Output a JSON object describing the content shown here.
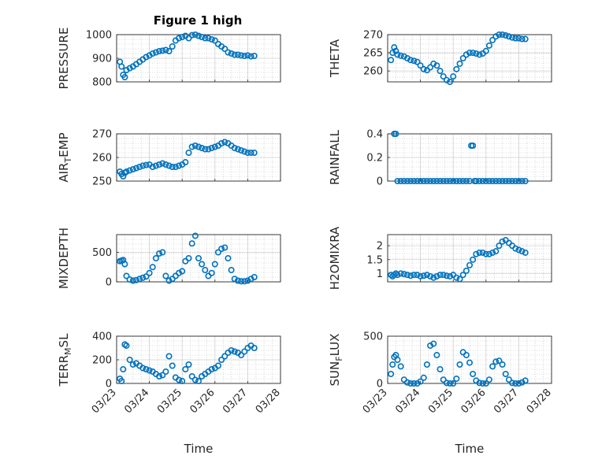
{
  "figure_title": "Figure 1 high",
  "marker_color": "#0072BD",
  "chart_data": [
    {
      "type": "scatter",
      "ylabel": "PRESSURE",
      "title": "Figure 1 high",
      "xlim": [
        "03/23",
        "03/28"
      ],
      "ylim": [
        800,
        1000
      ],
      "yticks": [
        800,
        900,
        1000
      ],
      "xticks": [
        "03/23",
        "03/24",
        "03/25",
        "03/26",
        "03/27",
        "03/28"
      ],
      "grid": true,
      "minor_grid": true,
      "series": [
        {
          "x": [
            0.1,
            0.15,
            0.2,
            0.25,
            0.3,
            0.4,
            0.5,
            0.6,
            0.7,
            0.8,
            0.9,
            1.0,
            1.1,
            1.2,
            1.3,
            1.4,
            1.5,
            1.6,
            1.7,
            1.8,
            1.9,
            2.0,
            2.1,
            2.2,
            2.3,
            2.4,
            2.5,
            2.6,
            2.7,
            2.8,
            2.9,
            3.0,
            3.1,
            3.2,
            3.3,
            3.4,
            3.5,
            3.6,
            3.7,
            3.8,
            3.9,
            4.0,
            4.1,
            4.2
          ],
          "y": [
            885,
            865,
            830,
            820,
            850,
            858,
            865,
            875,
            885,
            895,
            905,
            912,
            920,
            925,
            930,
            932,
            935,
            930,
            950,
            975,
            985,
            990,
            995,
            985,
            998,
            1000,
            995,
            990,
            985,
            985,
            980,
            975,
            960,
            950,
            940,
            925,
            920,
            915,
            915,
            912,
            910,
            912,
            908,
            910
          ]
        }
      ]
    },
    {
      "type": "scatter",
      "ylabel": "THETA",
      "xlim": [
        "03/23",
        "03/28"
      ],
      "ylim": [
        257,
        270
      ],
      "yticks": [
        260,
        265,
        270
      ],
      "xticks": [
        "03/23",
        "03/24",
        "03/25",
        "03/26",
        "03/27",
        "03/28"
      ],
      "grid": true,
      "minor_grid": true,
      "series": [
        {
          "x": [
            0.1,
            0.15,
            0.2,
            0.25,
            0.3,
            0.4,
            0.5,
            0.6,
            0.7,
            0.8,
            0.9,
            1.0,
            1.1,
            1.2,
            1.3,
            1.4,
            1.5,
            1.6,
            1.7,
            1.8,
            1.9,
            2.0,
            2.1,
            2.2,
            2.3,
            2.4,
            2.5,
            2.6,
            2.7,
            2.8,
            2.9,
            3.0,
            3.1,
            3.2,
            3.3,
            3.4,
            3.5,
            3.6,
            3.7,
            3.8,
            3.9,
            4.0,
            4.1,
            4.2
          ],
          "y": [
            263,
            265,
            266.5,
            265.5,
            264.5,
            264.2,
            264,
            263.5,
            263,
            262.8,
            262.5,
            261.5,
            260.5,
            260.2,
            261,
            262,
            261.5,
            260,
            258.5,
            257.5,
            257,
            258.5,
            260.5,
            262,
            263.5,
            264.5,
            265,
            265,
            264.8,
            264.5,
            264.8,
            265.5,
            267,
            268.5,
            269.5,
            270,
            270,
            269.8,
            269.5,
            269.2,
            269,
            269,
            268.8,
            268.8
          ]
        }
      ]
    },
    {
      "type": "scatter",
      "ylabel": "AIR_TEMP",
      "xlim": [
        "03/23",
        "03/28"
      ],
      "ylim": [
        250,
        270
      ],
      "yticks": [
        250,
        260,
        270
      ],
      "xticks": [
        "03/23",
        "03/24",
        "03/25",
        "03/26",
        "03/27",
        "03/28"
      ],
      "grid": true,
      "minor_grid": true,
      "series": [
        {
          "x": [
            0.1,
            0.15,
            0.2,
            0.25,
            0.3,
            0.4,
            0.5,
            0.6,
            0.7,
            0.8,
            0.9,
            1.0,
            1.1,
            1.2,
            1.3,
            1.4,
            1.5,
            1.6,
            1.7,
            1.8,
            1.9,
            2.0,
            2.1,
            2.2,
            2.3,
            2.4,
            2.5,
            2.6,
            2.7,
            2.8,
            2.9,
            3.0,
            3.1,
            3.2,
            3.3,
            3.4,
            3.5,
            3.6,
            3.7,
            3.8,
            3.9,
            4.0,
            4.1,
            4.2
          ],
          "y": [
            254,
            253,
            252,
            253.5,
            254,
            254.5,
            255,
            255.5,
            256,
            256.5,
            256.8,
            257,
            256,
            256.5,
            257,
            257.5,
            257,
            256.5,
            256,
            256,
            256.5,
            257,
            258,
            262,
            264.5,
            265,
            264.5,
            264,
            263.5,
            263.5,
            264,
            264.5,
            265,
            266,
            266.5,
            266,
            265,
            264,
            263.5,
            263,
            262.5,
            262,
            262,
            262
          ]
        }
      ]
    },
    {
      "type": "scatter",
      "ylabel": "RAINFALL",
      "xlim": [
        "03/23",
        "03/28"
      ],
      "ylim": [
        0,
        0.4
      ],
      "yticks": [
        0,
        0.2,
        0.4
      ],
      "xticks": [
        "03/23",
        "03/24",
        "03/25",
        "03/26",
        "03/27",
        "03/28"
      ],
      "grid": true,
      "minor_grid": true,
      "series": [
        {
          "x": [
            0.2,
            0.25,
            0.3,
            0.4,
            0.5,
            0.6,
            0.7,
            0.8,
            0.9,
            1.0,
            1.1,
            1.2,
            1.3,
            1.4,
            1.5,
            1.6,
            1.7,
            1.8,
            1.9,
            2.0,
            2.1,
            2.2,
            2.3,
            2.4,
            2.5,
            2.55,
            2.6,
            2.65,
            2.7,
            2.8,
            2.9,
            3.0,
            3.1,
            3.2,
            3.3,
            3.4,
            3.5,
            3.6,
            3.7,
            3.8,
            3.9,
            4.0,
            4.1,
            4.2
          ],
          "y": [
            0.4,
            0.4,
            0,
            0,
            0,
            0,
            0,
            0,
            0,
            0,
            0,
            0,
            0,
            0,
            0,
            0,
            0,
            0,
            0,
            0,
            0,
            0,
            0,
            0,
            0,
            0.3,
            0.3,
            0,
            0,
            0,
            0,
            0,
            0,
            0,
            0,
            0,
            0,
            0,
            0,
            0,
            0,
            0,
            0,
            0
          ]
        }
      ]
    },
    {
      "type": "scatter",
      "ylabel": "MIXDEPTH",
      "xlim": [
        "03/23",
        "03/28"
      ],
      "ylim": [
        0,
        800
      ],
      "yticks": [
        0,
        500
      ],
      "xticks": [
        "03/23",
        "03/24",
        "03/25",
        "03/26",
        "03/27",
        "03/28"
      ],
      "grid": true,
      "minor_grid": true,
      "series": [
        {
          "x": [
            0.1,
            0.15,
            0.2,
            0.25,
            0.3,
            0.4,
            0.5,
            0.6,
            0.7,
            0.8,
            0.9,
            1.0,
            1.1,
            1.2,
            1.3,
            1.4,
            1.5,
            1.6,
            1.7,
            1.8,
            1.9,
            2.0,
            2.1,
            2.2,
            2.3,
            2.4,
            2.5,
            2.6,
            2.7,
            2.8,
            2.9,
            3.0,
            3.1,
            3.2,
            3.3,
            3.4,
            3.5,
            3.6,
            3.7,
            3.8,
            3.9,
            4.0,
            4.1,
            4.2
          ],
          "y": [
            350,
            360,
            370,
            300,
            100,
            40,
            20,
            30,
            50,
            70,
            90,
            150,
            250,
            400,
            480,
            500,
            100,
            20,
            50,
            100,
            150,
            180,
            350,
            400,
            650,
            780,
            400,
            300,
            200,
            100,
            150,
            300,
            500,
            560,
            580,
            400,
            200,
            50,
            20,
            10,
            10,
            20,
            50,
            80
          ]
        }
      ]
    },
    {
      "type": "scatter",
      "ylabel": "H2OMIXRA",
      "xlim": [
        "03/23",
        "03/28"
      ],
      "ylim": [
        0.7,
        2.4
      ],
      "yticks": [
        1,
        1.5,
        2
      ],
      "xticks": [
        "03/23",
        "03/24",
        "03/25",
        "03/26",
        "03/27",
        "03/28"
      ],
      "grid": true,
      "minor_grid": true,
      "series": [
        {
          "x": [
            0.1,
            0.15,
            0.2,
            0.25,
            0.3,
            0.4,
            0.5,
            0.6,
            0.7,
            0.8,
            0.9,
            1.0,
            1.1,
            1.2,
            1.3,
            1.4,
            1.5,
            1.6,
            1.7,
            1.8,
            1.9,
            2.0,
            2.1,
            2.2,
            2.3,
            2.4,
            2.5,
            2.6,
            2.7,
            2.8,
            2.9,
            3.0,
            3.1,
            3.2,
            3.3,
            3.4,
            3.5,
            3.6,
            3.7,
            3.8,
            3.9,
            4.0,
            4.1,
            4.2
          ],
          "y": [
            0.95,
            0.9,
            0.95,
            1.0,
            0.95,
            1.0,
            0.98,
            0.95,
            0.92,
            0.95,
            0.95,
            0.9,
            0.92,
            0.95,
            0.9,
            0.85,
            0.9,
            0.95,
            0.95,
            0.92,
            0.9,
            0.95,
            0.85,
            0.8,
            0.95,
            1.1,
            1.3,
            1.5,
            1.7,
            1.75,
            1.75,
            1.7,
            1.7,
            1.75,
            1.8,
            2.0,
            2.15,
            2.2,
            2.1,
            2.0,
            1.9,
            1.85,
            1.8,
            1.75
          ]
        }
      ]
    },
    {
      "type": "scatter",
      "ylabel": "TERR_MSL",
      "xlim": [
        "03/23",
        "03/28"
      ],
      "ylim": [
        0,
        400
      ],
      "yticks": [
        0,
        200,
        400
      ],
      "xticks": [
        "03/23",
        "03/24",
        "03/25",
        "03/26",
        "03/27",
        "03/28"
      ],
      "grid": true,
      "minor_grid": true,
      "series": [
        {
          "x": [
            0.1,
            0.15,
            0.2,
            0.25,
            0.3,
            0.4,
            0.5,
            0.6,
            0.7,
            0.8,
            0.9,
            1.0,
            1.1,
            1.2,
            1.3,
            1.4,
            1.5,
            1.6,
            1.7,
            1.8,
            1.9,
            2.0,
            2.1,
            2.2,
            2.3,
            2.4,
            2.5,
            2.6,
            2.7,
            2.8,
            2.9,
            3.0,
            3.1,
            3.2,
            3.3,
            3.4,
            3.5,
            3.6,
            3.7,
            3.8,
            3.9,
            4.0,
            4.1,
            4.2
          ],
          "y": [
            40,
            20,
            120,
            330,
            320,
            200,
            160,
            170,
            150,
            130,
            120,
            110,
            100,
            80,
            60,
            70,
            100,
            230,
            150,
            50,
            30,
            20,
            120,
            160,
            60,
            30,
            20,
            60,
            80,
            100,
            120,
            130,
            150,
            200,
            230,
            260,
            280,
            270,
            260,
            240,
            270,
            300,
            320,
            300
          ]
        }
      ]
    },
    {
      "type": "scatter",
      "ylabel": "SUN_FLUX",
      "xlim": [
        "03/23",
        "03/28"
      ],
      "ylim": [
        0,
        500
      ],
      "yticks": [
        0,
        500
      ],
      "xticks": [
        "03/23",
        "03/24",
        "03/25",
        "03/26",
        "03/27",
        "03/28"
      ],
      "grid": true,
      "minor_grid": true,
      "series": [
        {
          "x": [
            0.1,
            0.15,
            0.2,
            0.25,
            0.3,
            0.4,
            0.5,
            0.6,
            0.7,
            0.8,
            0.9,
            1.0,
            1.1,
            1.2,
            1.3,
            1.4,
            1.5,
            1.6,
            1.7,
            1.8,
            1.9,
            2.0,
            2.1,
            2.2,
            2.3,
            2.4,
            2.5,
            2.6,
            2.7,
            2.8,
            2.9,
            3.0,
            3.1,
            3.2,
            3.3,
            3.4,
            3.5,
            3.6,
            3.7,
            3.8,
            3.9,
            4.0,
            4.1,
            4.2
          ],
          "y": [
            100,
            200,
            280,
            300,
            250,
            180,
            40,
            10,
            0,
            0,
            0,
            20,
            60,
            200,
            400,
            420,
            300,
            150,
            40,
            5,
            0,
            0,
            50,
            200,
            330,
            300,
            220,
            100,
            30,
            5,
            0,
            0,
            40,
            180,
            230,
            240,
            200,
            100,
            40,
            5,
            0,
            0,
            10,
            30
          ]
        }
      ]
    }
  ]
}
